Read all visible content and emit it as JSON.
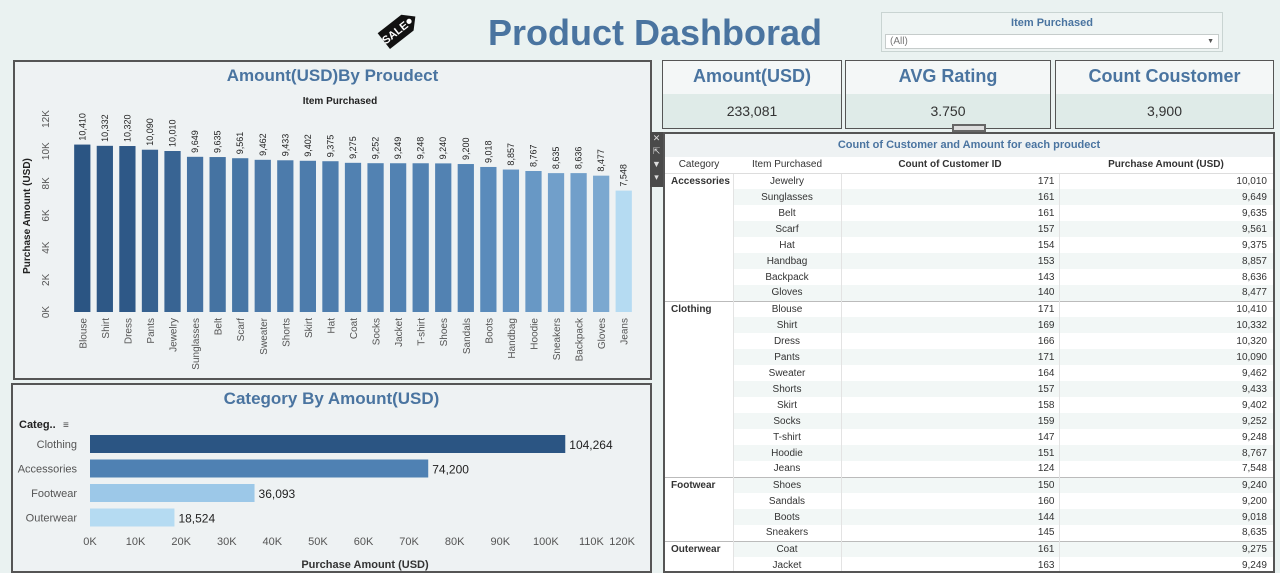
{
  "header": {
    "title": "Product Dashborad",
    "logo_text": "SALE",
    "filter": {
      "title": "Item Purchased",
      "value": "(All)"
    }
  },
  "kpis": [
    {
      "label": "Amount(USD)",
      "value": "233,081"
    },
    {
      "label": "AVG Rating",
      "value": "3.750"
    },
    {
      "label": "Count Coustomer",
      "value": "3,900"
    }
  ],
  "colors": {
    "dark": "#2b5583",
    "mid": "#4f81b3",
    "light": "#9cc8e8",
    "lightest": "#b5dbf2",
    "title": "#4a74a0"
  },
  "chart_data": [
    {
      "type": "bar",
      "title": "Amount(USD)By Proudect",
      "subtitle": "Item Purchased",
      "xlabel": "",
      "ylabel": "Purchase Amount (USD)",
      "ylim": [
        0,
        12000
      ],
      "y_ticks": [
        "0K",
        "2K",
        "4K",
        "6K",
        "8K",
        "10K",
        "12K"
      ],
      "grid": false,
      "categories": [
        "Blouse",
        "Shirt",
        "Dress",
        "Pants",
        "Jewelry",
        "Sunglasses",
        "Belt",
        "Scarf",
        "Sweater",
        "Shorts",
        "Skirt",
        "Hat",
        "Coat",
        "Socks",
        "Jacket",
        "T-shirt",
        "Shoes",
        "Sandals",
        "Boots",
        "Handbag",
        "Hoodie",
        "Sneakers",
        "Backpack",
        "Gloves",
        "Jeans"
      ],
      "values": [
        10410,
        10332,
        10320,
        10090,
        10010,
        9649,
        9635,
        9561,
        9462,
        9433,
        9402,
        9375,
        9275,
        9252,
        9249,
        9248,
        9240,
        9200,
        9018,
        8857,
        8767,
        8635,
        8636,
        8477,
        7548
      ],
      "labels": [
        "10,410",
        "10,332",
        "10,320",
        "10,090",
        "10,010",
        "9,649",
        "9,635",
        "9,561",
        "9,462",
        "9,433",
        "9,402",
        "9,375",
        "9,275",
        "9,252",
        "9,249",
        "9,248",
        "9,240",
        "9,200",
        "9,018",
        "8,857",
        "8,767",
        "8,635",
        "8,636",
        "8,477",
        "7,548"
      ]
    },
    {
      "type": "bar",
      "orientation": "horizontal",
      "title": "Category By Amount(USD)",
      "category_header": "Categ..",
      "xlabel": "Purchase Amount (USD)",
      "ylabel": "",
      "xlim": [
        0,
        120000
      ],
      "x_ticks": [
        "0K",
        "10K",
        "20K",
        "30K",
        "40K",
        "50K",
        "60K",
        "70K",
        "80K",
        "90K",
        "100K",
        "110K",
        "120K"
      ],
      "grid": false,
      "categories": [
        "Clothing",
        "Accessories",
        "Footwear",
        "Outerwear"
      ],
      "values": [
        104264,
        74200,
        36093,
        18524
      ],
      "labels": [
        "104,264",
        "74,200",
        "36,093",
        "18,524"
      ]
    }
  ],
  "table": {
    "title": "Count  of Customer and Amount for each proudect",
    "headers": [
      "Category",
      "Item Purchased",
      "Count of Customer ID",
      "Purchase Amount (USD)"
    ],
    "groups": [
      {
        "category": "Accessories",
        "rows": [
          [
            "Jewelry",
            "171",
            "10,010"
          ],
          [
            "Sunglasses",
            "161",
            "9,649"
          ],
          [
            "Belt",
            "161",
            "9,635"
          ],
          [
            "Scarf",
            "157",
            "9,561"
          ],
          [
            "Hat",
            "154",
            "9,375"
          ],
          [
            "Handbag",
            "153",
            "8,857"
          ],
          [
            "Backpack",
            "143",
            "8,636"
          ],
          [
            "Gloves",
            "140",
            "8,477"
          ]
        ]
      },
      {
        "category": "Clothing",
        "rows": [
          [
            "Blouse",
            "171",
            "10,410"
          ],
          [
            "Shirt",
            "169",
            "10,332"
          ],
          [
            "Dress",
            "166",
            "10,320"
          ],
          [
            "Pants",
            "171",
            "10,090"
          ],
          [
            "Sweater",
            "164",
            "9,462"
          ],
          [
            "Shorts",
            "157",
            "9,433"
          ],
          [
            "Skirt",
            "158",
            "9,402"
          ],
          [
            "Socks",
            "159",
            "9,252"
          ],
          [
            "T-shirt",
            "147",
            "9,248"
          ],
          [
            "Hoodie",
            "151",
            "8,767"
          ],
          [
            "Jeans",
            "124",
            "7,548"
          ]
        ]
      },
      {
        "category": "Footwear",
        "rows": [
          [
            "Shoes",
            "150",
            "9,240"
          ],
          [
            "Sandals",
            "160",
            "9,200"
          ],
          [
            "Boots",
            "144",
            "9,018"
          ],
          [
            "Sneakers",
            "145",
            "8,635"
          ]
        ]
      },
      {
        "category": "Outerwear",
        "rows": [
          [
            "Coat",
            "161",
            "9,275"
          ],
          [
            "Jacket",
            "163",
            "9,249"
          ]
        ]
      }
    ]
  }
}
